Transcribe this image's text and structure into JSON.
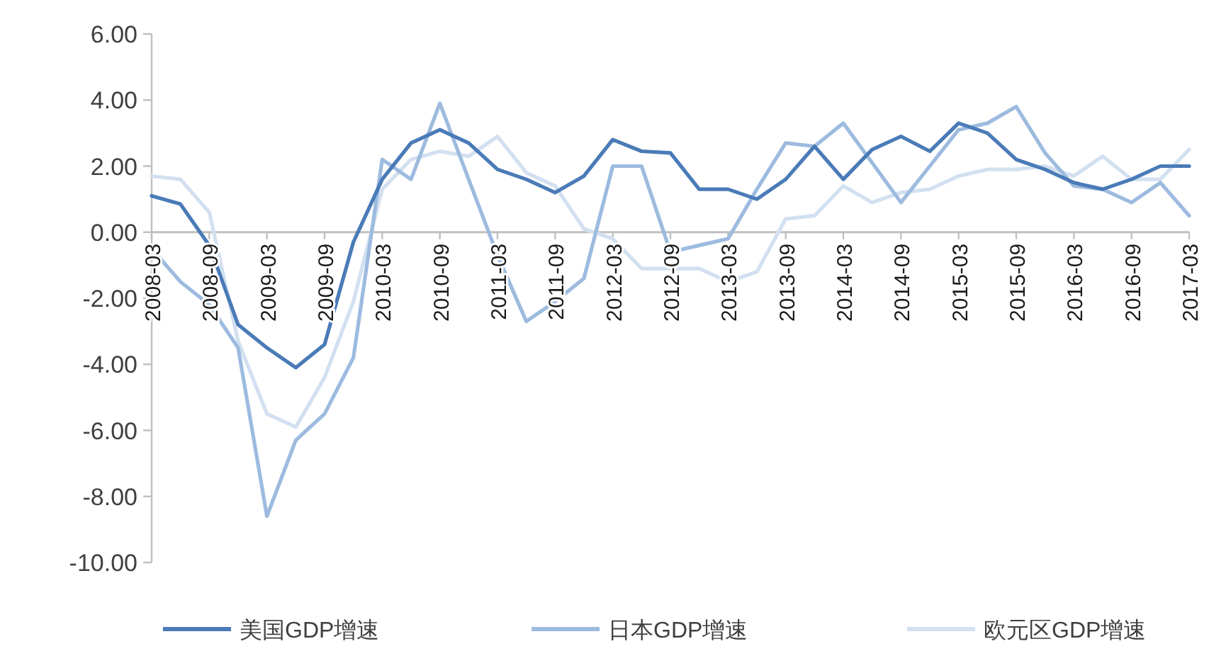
{
  "chart_data": {
    "type": "line",
    "categories": [
      "2008-03",
      null,
      "2008-09",
      null,
      "2009-03",
      null,
      "2009-09",
      null,
      "2010-03",
      null,
      "2010-09",
      null,
      "2011-03",
      null,
      "2011-09",
      null,
      "2012-03",
      null,
      "2012-09",
      null,
      "2013-03",
      null,
      "2013-09",
      null,
      "2014-03",
      null,
      "2014-09",
      null,
      "2015-03",
      null,
      "2015-09",
      null,
      "2016-03",
      null,
      "2016-09",
      null,
      "2017-03"
    ],
    "series": [
      {
        "name": "美国GDP增速",
        "color": "#4a7bb7",
        "values": [
          1.1,
          0.85,
          -0.4,
          -2.8,
          -3.5,
          -4.1,
          -3.4,
          -0.3,
          1.6,
          2.7,
          3.1,
          2.7,
          1.9,
          1.6,
          1.2,
          1.7,
          2.8,
          2.45,
          2.4,
          1.3,
          1.3,
          1.0,
          1.6,
          2.6,
          1.6,
          2.5,
          2.9,
          2.45,
          3.3,
          3.0,
          2.2,
          1.9,
          1.5,
          1.3,
          1.6,
          2.0,
          2.0
        ]
      },
      {
        "name": "日本GDP增速",
        "color": "#9dbbdf",
        "values": [
          -0.5,
          -1.5,
          -2.2,
          -3.5,
          -8.6,
          -6.3,
          -5.5,
          -3.8,
          2.2,
          1.6,
          3.9,
          1.6,
          -0.7,
          -2.7,
          -2.1,
          -1.4,
          2.0,
          2.0,
          -0.6,
          -0.4,
          -0.2,
          1.3,
          2.7,
          2.6,
          3.3,
          2.1,
          0.9,
          2.0,
          3.1,
          3.3,
          3.8,
          2.4,
          1.4,
          1.3,
          0.9,
          1.5,
          0.5
        ]
      },
      {
        "name": "欧元区GDP增速",
        "color": "#d2e0f0",
        "values": [
          1.7,
          1.6,
          0.6,
          -3.3,
          -5.5,
          -5.9,
          -4.4,
          -2.1,
          1.3,
          2.2,
          2.45,
          2.3,
          2.9,
          1.8,
          1.4,
          0.1,
          -0.2,
          -1.1,
          -1.1,
          -1.1,
          -1.5,
          -1.2,
          0.4,
          0.5,
          1.4,
          0.9,
          1.2,
          1.3,
          1.7,
          1.9,
          1.9,
          2.0,
          1.7,
          2.3,
          1.6,
          1.6,
          2.5
        ]
      }
    ],
    "ylim": [
      -10,
      6
    ],
    "yticks": [
      {
        "value": -10,
        "label": "-10.00"
      },
      {
        "value": -8,
        "label": "-8.00"
      },
      {
        "value": -6,
        "label": "-6.00"
      },
      {
        "value": -4,
        "label": "-4.00"
      },
      {
        "value": -2,
        "label": "-2.00"
      },
      {
        "value": 0,
        "label": "0.00"
      },
      {
        "value": 2,
        "label": "2.00"
      },
      {
        "value": 4,
        "label": "4.00"
      },
      {
        "value": 6,
        "label": "6.00"
      }
    ],
    "legend": "bottom",
    "grid": false,
    "marker": "none",
    "line_style": "solid"
  }
}
